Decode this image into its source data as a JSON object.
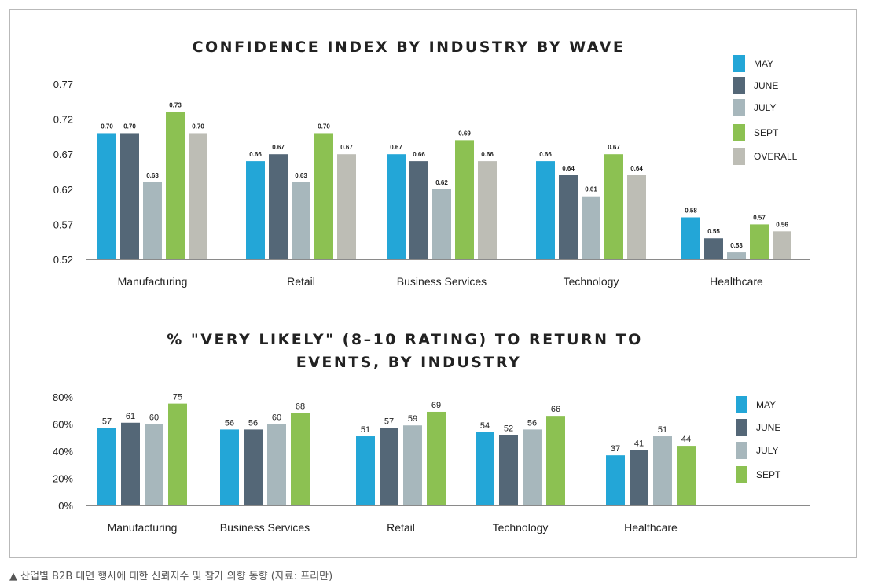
{
  "caption": "▲ 산업별 B2B 대면 행사에 대한 신뢰지수 및 참가 의향 동향 (자료: 프리만)",
  "colors": {
    "MAY": "#23a6d7",
    "JUNE": "#546777",
    "JULY": "#a7b7bc",
    "SEPT": "#8cc152",
    "OVERALL": "#bdbdb5"
  },
  "chart_data": [
    {
      "type": "bar",
      "title": "CONFIDENCE INDEX BY INDUSTRY BY WAVE",
      "categories": [
        "Manufacturing",
        "Retail",
        "Business Services",
        "Technology",
        "Healthcare"
      ],
      "series": [
        {
          "name": "MAY",
          "values": [
            0.7,
            0.66,
            0.67,
            0.66,
            0.58
          ],
          "labels": [
            "0.70",
            "0.66",
            "0.67",
            "0.66",
            "0.58"
          ]
        },
        {
          "name": "JUNE",
          "values": [
            0.7,
            0.67,
            0.66,
            0.64,
            0.55
          ],
          "labels": [
            "0.70",
            "0.67",
            "0.66",
            "0.64",
            "0.55"
          ]
        },
        {
          "name": "JULY",
          "values": [
            0.63,
            0.63,
            0.62,
            0.61,
            0.53
          ],
          "labels": [
            "0.63",
            "0.63",
            "0.62",
            "0.61",
            "0.53"
          ]
        },
        {
          "name": "SEPT",
          "values": [
            0.73,
            0.7,
            0.69,
            0.67,
            0.57
          ],
          "labels": [
            "0.73",
            "0.70",
            "0.69",
            "0.67",
            "0.57"
          ]
        },
        {
          "name": "OVERALL",
          "values": [
            0.7,
            0.67,
            0.66,
            0.64,
            0.56
          ],
          "labels": [
            "0.70",
            "0.67",
            "0.66",
            "0.64",
            "0.56"
          ]
        }
      ],
      "yticks": [
        "0.52",
        "0.57",
        "0.62",
        "0.67",
        "0.72",
        "0.77"
      ],
      "ylim": [
        0.52,
        0.77
      ],
      "legend": [
        "MAY",
        "JUNE",
        "JULY",
        "SEPT",
        "OVERALL"
      ],
      "legend_position": "top-right"
    },
    {
      "type": "bar",
      "title": "% \"VERY LIKELY\" (8–10 RATING) TO RETURN TO EVENTS, BY INDUSTRY",
      "title_lines": [
        "% \"VERY LIKELY\" (8–10 RATING) TO RETURN TO",
        "EVENTS, BY INDUSTRY"
      ],
      "categories": [
        "Manufacturing",
        "Business Services",
        "Retail",
        "Technology",
        "Healthcare"
      ],
      "series": [
        {
          "name": "MAY",
          "values": [
            57,
            56,
            51,
            54,
            37
          ],
          "labels": [
            "57",
            "56",
            "51",
            "54",
            "37"
          ]
        },
        {
          "name": "JUNE",
          "values": [
            61,
            56,
            57,
            52,
            41
          ],
          "labels": [
            "61",
            "56",
            "57",
            "52",
            "41"
          ]
        },
        {
          "name": "JULY",
          "values": [
            60,
            60,
            59,
            56,
            51
          ],
          "labels": [
            "60",
            "60",
            "59",
            "56",
            "51"
          ]
        },
        {
          "name": "SEPT",
          "values": [
            75,
            68,
            69,
            66,
            44
          ],
          "labels": [
            "75",
            "68",
            "69",
            "66",
            "44"
          ]
        }
      ],
      "yticks": [
        "0%",
        "20%",
        "40%",
        "60%",
        "80%"
      ],
      "ylim": [
        0,
        80
      ],
      "legend": [
        "MAY",
        "JUNE",
        "JULY",
        "SEPT"
      ],
      "legend_position": "right"
    }
  ]
}
